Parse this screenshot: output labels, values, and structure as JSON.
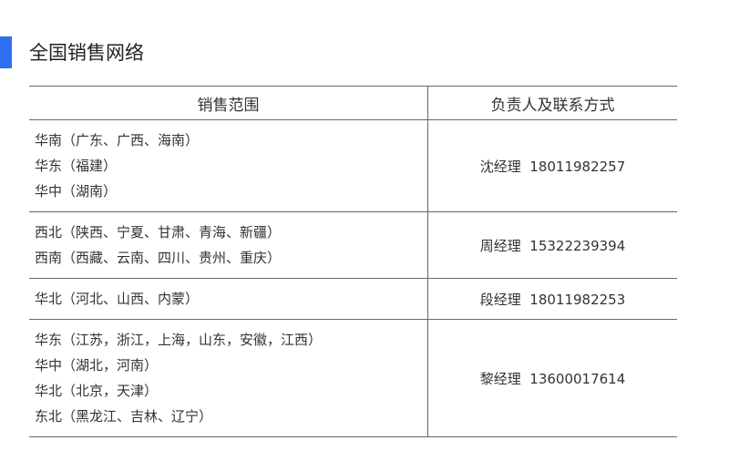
{
  "title": "全国销售网络",
  "accent": "#2f6ff0",
  "headers": [
    "销售范围",
    "负责人及联系方式"
  ],
  "rows": [
    {
      "regions": [
        "华南（广东、广西、海南）",
        "华东（福建）",
        "华中（湖南）"
      ],
      "contact": "沈经理  18011982257"
    },
    {
      "regions": [
        "西北（陕西、宁夏、甘肃、青海、新疆）",
        "西南（西藏、云南、四川、贵州、重庆）"
      ],
      "contact": "周经理  15322239394"
    },
    {
      "regions": [
        "华北（河北、山西、内蒙）"
      ],
      "contact": "段经理  18011982253"
    },
    {
      "regions": [
        "华东（江苏，浙江，上海，山东，安徽，江西）",
        "华中（湖北，河南）",
        "华北（北京，天津）",
        "东北（黑龙江、吉林、辽宁）"
      ],
      "contact": "黎经理  13600017614"
    }
  ]
}
